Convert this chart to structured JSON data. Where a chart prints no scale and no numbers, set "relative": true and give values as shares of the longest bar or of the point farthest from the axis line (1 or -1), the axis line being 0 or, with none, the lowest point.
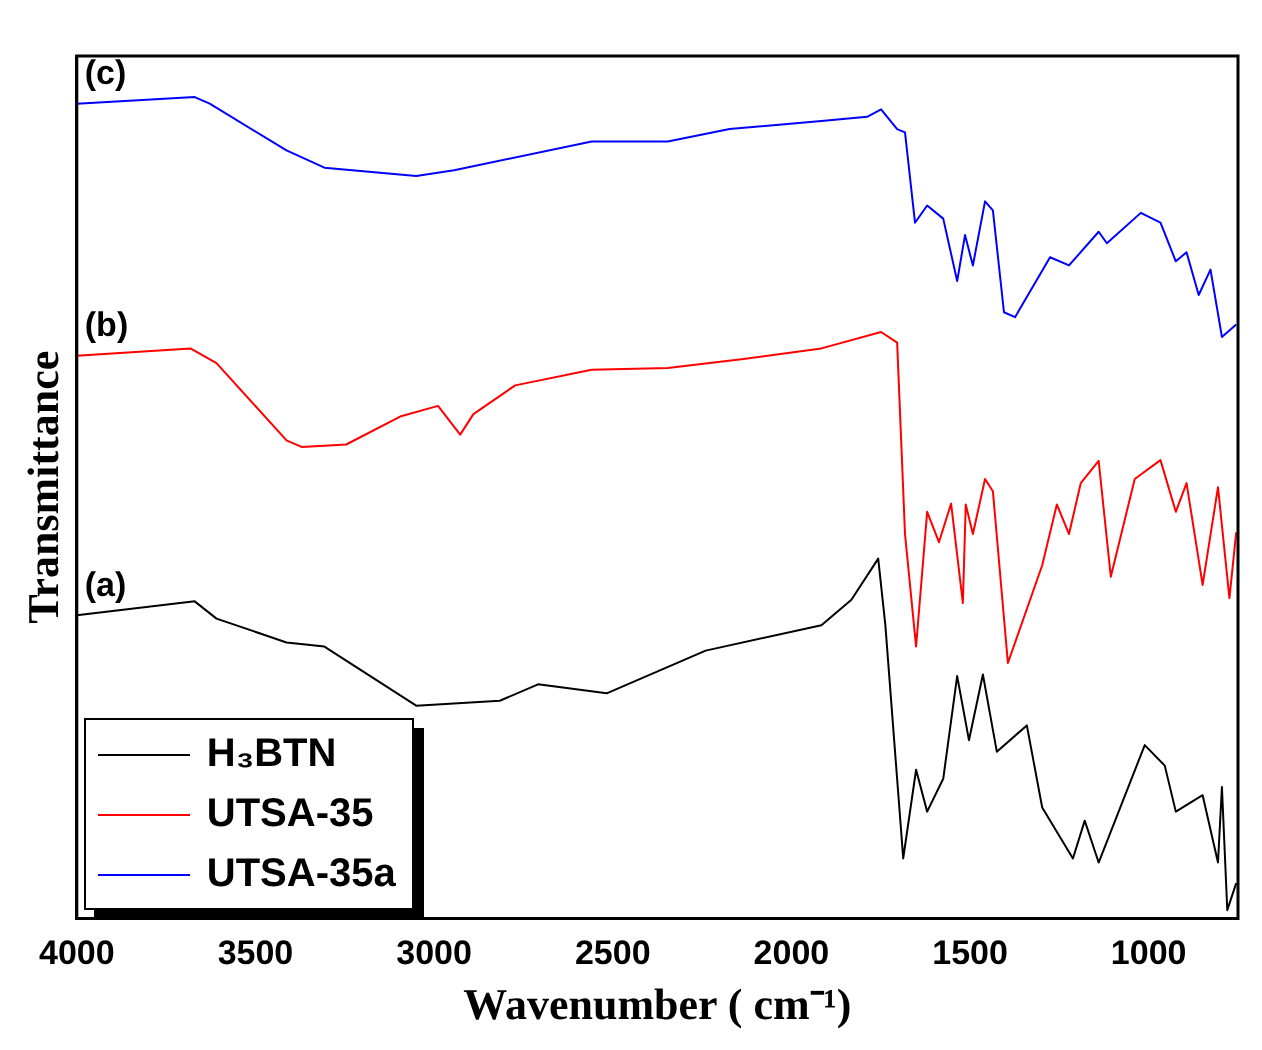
{
  "chart_data": {
    "type": "line",
    "relative": true,
    "xlabel": "Wavenumber ( cm⁻¹)",
    "ylabel": "Transmittance",
    "xlim": [
      4000,
      750
    ],
    "xticks": [
      4000,
      3500,
      3000,
      2500,
      2000,
      1500,
      1000
    ],
    "grid": false,
    "legend": "bottom left",
    "marker": "none",
    "line_style": "solid",
    "annotations": [
      "(a)",
      "(b)",
      "(c)"
    ],
    "series": [
      {
        "name": "H₃BTN",
        "color": "#000000",
        "x": [
          4000,
          3670,
          3609,
          3413,
          3307,
          3050,
          2816,
          2709,
          2517,
          2240,
          1916,
          1832,
          1757,
          1737,
          1687,
          1651,
          1620,
          1575,
          1536,
          1503,
          1464,
          1425,
          1341,
          1298,
          1212,
          1179,
          1140,
          1011,
          955,
          924,
          849,
          806,
          795,
          780,
          755
        ],
        "values": [
          0.369,
          0.386,
          0.365,
          0.336,
          0.331,
          0.259,
          0.265,
          0.285,
          0.274,
          0.326,
          0.357,
          0.388,
          0.438,
          0.357,
          0.073,
          0.181,
          0.13,
          0.17,
          0.295,
          0.217,
          0.297,
          0.203,
          0.235,
          0.135,
          0.073,
          0.119,
          0.068,
          0.211,
          0.186,
          0.13,
          0.15,
          0.068,
          0.16,
          0.01,
          0.043
        ]
      },
      {
        "name": "UTSA-35",
        "color": "#ff0000",
        "x": [
          4000,
          3682,
          3609,
          3413,
          3371,
          3246,
          3095,
          2989,
          2927,
          2890,
          2773,
          2559,
          2346,
          2134,
          1916,
          1749,
          1704,
          1682,
          1651,
          1620,
          1587,
          1553,
          1520,
          1512,
          1492,
          1458,
          1436,
          1394,
          1298,
          1257,
          1223,
          1190,
          1140,
          1106,
          1039,
          967,
          924,
          894,
          849,
          806,
          774,
          755
        ],
        "values": [
          0.685,
          0.694,
          0.676,
          0.582,
          0.574,
          0.577,
          0.611,
          0.624,
          0.589,
          0.614,
          0.649,
          0.668,
          0.67,
          0.681,
          0.694,
          0.714,
          0.701,
          0.468,
          0.331,
          0.495,
          0.458,
          0.505,
          0.384,
          0.504,
          0.468,
          0.535,
          0.52,
          0.311,
          0.43,
          0.504,
          0.468,
          0.53,
          0.557,
          0.416,
          0.535,
          0.558,
          0.495,
          0.53,
          0.406,
          0.525,
          0.39,
          0.47
        ]
      },
      {
        "name": "UTSA-35a",
        "color": "#0000ff",
        "x": [
          4000,
          3670,
          3628,
          3413,
          3307,
          3050,
          2944,
          2559,
          2346,
          2173,
          1916,
          1788,
          1749,
          1704,
          1682,
          1654,
          1620,
          1575,
          1536,
          1514,
          1492,
          1458,
          1436,
          1405,
          1374,
          1276,
          1223,
          1140,
          1117,
          1022,
          967,
          924,
          894,
          860,
          827,
          795,
          755
        ],
        "values": [
          0.992,
          1.0,
          0.992,
          0.935,
          0.914,
          0.904,
          0.911,
          0.946,
          0.946,
          0.961,
          0.971,
          0.976,
          0.985,
          0.961,
          0.957,
          0.847,
          0.868,
          0.852,
          0.776,
          0.832,
          0.795,
          0.873,
          0.862,
          0.738,
          0.732,
          0.805,
          0.795,
          0.836,
          0.822,
          0.859,
          0.847,
          0.8,
          0.811,
          0.759,
          0.79,
          0.708,
          0.723
        ]
      }
    ]
  }
}
